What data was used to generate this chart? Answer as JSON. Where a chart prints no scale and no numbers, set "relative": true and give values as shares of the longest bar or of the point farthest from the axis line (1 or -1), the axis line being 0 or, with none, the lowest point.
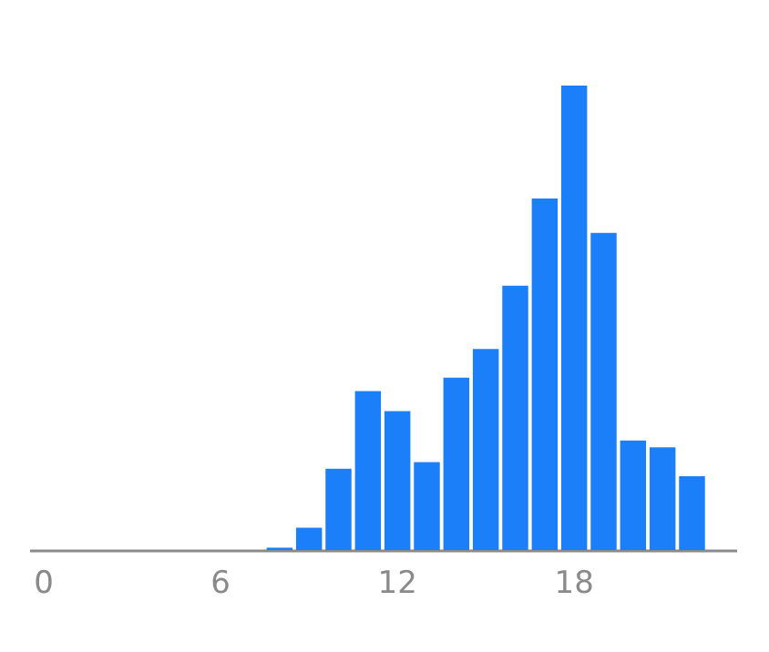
{
  "chart_data": {
    "type": "bar",
    "relative": true,
    "color": "#1a7ff8",
    "categories": [
      "0",
      null,
      null,
      null,
      null,
      null,
      "6",
      null,
      null,
      null,
      null,
      null,
      "12",
      null,
      null,
      null,
      null,
      null,
      "18",
      null,
      null,
      null,
      null,
      null
    ],
    "values": [
      0,
      0,
      0,
      0,
      0,
      0,
      0,
      0,
      0.005,
      0.048,
      0.175,
      0.342,
      0.299,
      0.189,
      0.371,
      0.433,
      0.569,
      0.757,
      1,
      0.683,
      0.236,
      0.221,
      0.159,
      0
    ],
    "grid": false
  }
}
